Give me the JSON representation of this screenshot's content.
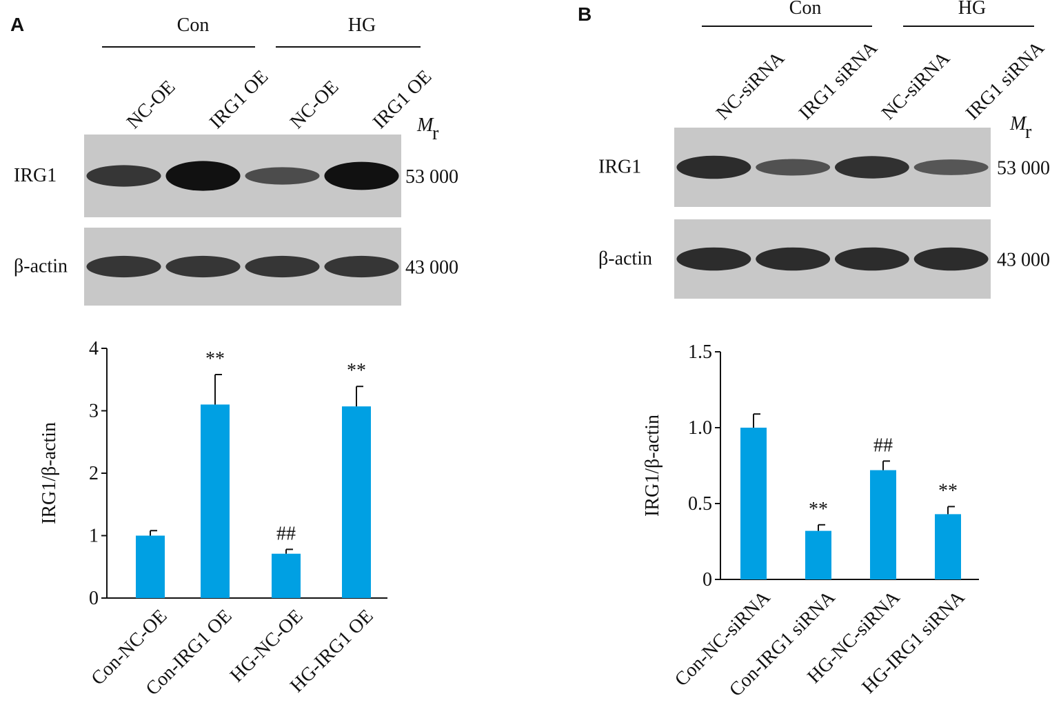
{
  "chart_data": [
    {
      "type": "bar",
      "panel": "A",
      "groups": [
        "Con",
        "HG"
      ],
      "lanes": [
        "NC-OE",
        "IRG1 OE",
        "NC-OE",
        "IRG1 OE"
      ],
      "blots": [
        "IRG1",
        "β-actin"
      ],
      "mw": [
        "53 000",
        "43 000"
      ],
      "mr": [
        "M",
        "r"
      ],
      "ylabel": "IRG1/β-actin",
      "categories": [
        "Con-NC-OE",
        "Con-IRG1 OE",
        "HG-NC-OE",
        "HG-IRG1 OE"
      ],
      "values": [
        1.0,
        3.1,
        0.71,
        3.07
      ],
      "errors": [
        0.08,
        0.48,
        0.07,
        0.32
      ],
      "annotations": [
        null,
        "**",
        "##",
        "**"
      ],
      "color": "#00a0e3",
      "ylim": [
        0,
        4
      ],
      "yticks": [
        0,
        1,
        2,
        3,
        4
      ]
    },
    {
      "type": "bar",
      "panel": "B",
      "groups": [
        "Con",
        "HG"
      ],
      "lanes": [
        "NC-siRNA",
        "IRG1 siRNA",
        "NC-siRNA",
        "IRG1 siRNA"
      ],
      "blots": [
        "IRG1",
        "β-actin"
      ],
      "mw": [
        "53 000",
        "43 000"
      ],
      "mr": [
        "M",
        "r"
      ],
      "ylabel": "IRG1/β-actin",
      "categories": [
        "Con-NC-siRNA",
        "Con-IRG1 siRNA",
        "HG-NC-siRNA",
        "HG-IRG1 siRNA"
      ],
      "values": [
        1.0,
        0.32,
        0.72,
        0.43
      ],
      "errors": [
        0.09,
        0.04,
        0.06,
        0.05
      ],
      "annotations": [
        null,
        "**",
        "##",
        "**"
      ],
      "color": "#00a0e3",
      "ylim": [
        0,
        1.5
      ],
      "yticks": [
        0,
        0.5,
        {
          "value": 1,
          "label": "1.0"
        },
        1.5
      ]
    }
  ]
}
